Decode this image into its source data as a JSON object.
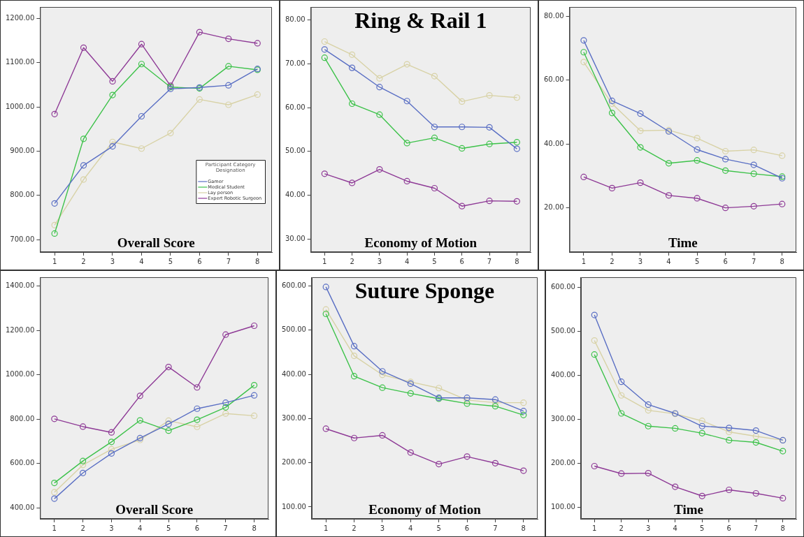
{
  "chart_data": [
    {
      "type": "line",
      "xlabel": "Overall Score",
      "legend_title": "Participant Category Designation",
      "legend": "bottom right",
      "marker": "circle",
      "line_style": "solid",
      "grid": false,
      "categories": [
        "1",
        "2",
        "3",
        "4",
        "5",
        "6",
        "7",
        "8"
      ],
      "ylim": [
        672,
        1226
      ],
      "yticks": [
        {
          "value": 700,
          "label": "700.00"
        },
        {
          "value": 800,
          "label": "800.00"
        },
        {
          "value": 900,
          "label": "900.00"
        },
        {
          "value": 1000,
          "label": "1000.00"
        },
        {
          "value": 1100,
          "label": "1100.00"
        },
        {
          "value": 1200,
          "label": "1200.00"
        }
      ],
      "series": [
        {
          "name": "Gamer",
          "color": "#5a6fc4",
          "values": [
            782,
            868,
            911,
            979,
            1041,
            1044,
            1049,
            1086
          ]
        },
        {
          "name": "Medical Student",
          "color": "#3dc24a",
          "values": [
            714,
            928,
            1027,
            1097,
            1045,
            1042,
            1092,
            1084
          ]
        },
        {
          "name": "Lay person",
          "color": "#d8d2a6",
          "values": [
            733,
            836,
            921,
            906,
            941,
            1017,
            1005,
            1028
          ]
        },
        {
          "name": "Expert Robotic Surgeon",
          "color": "#8e3a96",
          "values": [
            984,
            1134,
            1058,
            1142,
            1048,
            1169,
            1154,
            1144
          ]
        }
      ]
    },
    {
      "type": "line",
      "title": "Ring & Rail 1",
      "xlabel": "Economy of Motion",
      "marker": "circle",
      "line_style": "solid",
      "grid": false,
      "categories": [
        "1",
        "2",
        "3",
        "4",
        "5",
        "6",
        "7",
        "8"
      ],
      "ylim": [
        27,
        83
      ],
      "yticks": [
        {
          "value": 30,
          "label": "30.00"
        },
        {
          "value": 40,
          "label": "40.00"
        },
        {
          "value": 50,
          "label": "50.00"
        },
        {
          "value": 60,
          "label": "60.00"
        },
        {
          "value": 70,
          "label": "70.00"
        },
        {
          "value": 80,
          "label": "80.00"
        }
      ],
      "series": [
        {
          "color": "#5a6fc4",
          "values": [
            73.3,
            69.1,
            64.7,
            61.5,
            55.6,
            55.6,
            55.5,
            50.6
          ]
        },
        {
          "color": "#3dc24a",
          "values": [
            71.4,
            60.9,
            58.4,
            51.9,
            53.1,
            50.7,
            51.7,
            52.1
          ]
        },
        {
          "color": "#d8d2a6",
          "values": [
            75.1,
            72.1,
            66.7,
            69.9,
            67.2,
            61.4,
            62.8,
            62.3
          ]
        },
        {
          "color": "#8e3a96",
          "values": [
            44.9,
            42.8,
            45.9,
            43.2,
            41.6,
            37.5,
            38.7,
            38.6
          ]
        }
      ]
    },
    {
      "type": "line",
      "xlabel": "Time",
      "marker": "circle",
      "line_style": "solid",
      "grid": false,
      "categories": [
        "1",
        "2",
        "3",
        "4",
        "5",
        "6",
        "7",
        "8"
      ],
      "ylim": [
        6,
        83
      ],
      "yticks": [
        {
          "value": 20,
          "label": "20.00"
        },
        {
          "value": 40,
          "label": "40.00"
        },
        {
          "value": 60,
          "label": "60.00"
        },
        {
          "value": 80,
          "label": "80.00"
        }
      ],
      "series": [
        {
          "color": "#5a6fc4",
          "values": [
            72.5,
            53.5,
            49.5,
            43.9,
            38.2,
            35.2,
            33.4,
            29.2
          ]
        },
        {
          "color": "#3dc24a",
          "values": [
            68.8,
            49.7,
            38.9,
            33.9,
            34.8,
            31.6,
            30.6,
            29.7
          ]
        },
        {
          "color": "#d8d2a6",
          "values": [
            65.7,
            52.6,
            44.1,
            44.3,
            41.8,
            37.7,
            38.1,
            36.3
          ]
        },
        {
          "color": "#8e3a96",
          "values": [
            29.6,
            26.1,
            27.8,
            23.8,
            22.9,
            19.9,
            20.4,
            21.1
          ]
        }
      ]
    },
    {
      "type": "line",
      "xlabel": "Overall Score",
      "marker": "circle",
      "line_style": "solid",
      "grid": false,
      "categories": [
        "1",
        "2",
        "3",
        "4",
        "5",
        "6",
        "7",
        "8"
      ],
      "ylim": [
        350,
        1440
      ],
      "yticks": [
        {
          "value": 400,
          "label": "400.00"
        },
        {
          "value": 600,
          "label": "600.00"
        },
        {
          "value": 800,
          "label": "800.00"
        },
        {
          "value": 1000,
          "label": "1000.00"
        },
        {
          "value": 1200,
          "label": "1200.00"
        },
        {
          "value": 1400,
          "label": "1400.00"
        }
      ],
      "series": [
        {
          "color": "#5a6fc4",
          "values": [
            441,
            557,
            645,
            714,
            778,
            847,
            874,
            907
          ]
        },
        {
          "color": "#3dc24a",
          "values": [
            512,
            611,
            697,
            794,
            748,
            797,
            853,
            953
          ]
        },
        {
          "color": "#d8d2a6",
          "values": [
            470,
            593,
            664,
            706,
            793,
            765,
            825,
            815
          ]
        },
        {
          "color": "#8e3a96",
          "values": [
            801,
            766,
            740,
            905,
            1035,
            943,
            1181,
            1221
          ]
        }
      ]
    },
    {
      "type": "line",
      "title": "Suture Sponge",
      "xlabel": "Economy of Motion",
      "marker": "circle",
      "line_style": "solid",
      "grid": false,
      "categories": [
        "1",
        "2",
        "3",
        "4",
        "5",
        "6",
        "7",
        "8"
      ],
      "ylim": [
        73,
        620
      ],
      "yticks": [
        {
          "value": 100,
          "label": "100.00"
        },
        {
          "value": 200,
          "label": "200.00"
        },
        {
          "value": 300,
          "label": "300.00"
        },
        {
          "value": 400,
          "label": "400.00"
        },
        {
          "value": 500,
          "label": "500.00"
        },
        {
          "value": 600,
          "label": "600.00"
        }
      ],
      "series": [
        {
          "color": "#5a6fc4",
          "values": [
            598,
            464,
            407,
            379,
            347,
            347,
            343,
            317
          ]
        },
        {
          "color": "#3dc24a",
          "values": [
            537,
            396,
            370,
            357,
            345,
            334,
            328,
            308
          ]
        },
        {
          "color": "#d8d2a6",
          "values": [
            547,
            442,
            399,
            383,
            369,
            342,
            336,
            336
          ]
        },
        {
          "color": "#8e3a96",
          "values": [
            277,
            256,
            262,
            223,
            197,
            214,
            199,
            182
          ]
        }
      ]
    },
    {
      "type": "line",
      "xlabel": "Time",
      "marker": "circle",
      "line_style": "solid",
      "grid": false,
      "categories": [
        "1",
        "2",
        "3",
        "4",
        "5",
        "6",
        "7",
        "8"
      ],
      "ylim": [
        73,
        623
      ],
      "yticks": [
        {
          "value": 100,
          "label": "100.00"
        },
        {
          "value": 200,
          "label": "200.00"
        },
        {
          "value": 300,
          "label": "300.00"
        },
        {
          "value": 400,
          "label": "400.00"
        },
        {
          "value": 500,
          "label": "500.00"
        },
        {
          "value": 600,
          "label": "600.00"
        }
      ],
      "series": [
        {
          "color": "#5a6fc4",
          "values": [
            537,
            385,
            333,
            313,
            284,
            280,
            274,
            252
          ]
        },
        {
          "color": "#3dc24a",
          "values": [
            447,
            313,
            284,
            279,
            268,
            252,
            247,
            227
          ]
        },
        {
          "color": "#d8d2a6",
          "values": [
            479,
            354,
            320,
            312,
            296,
            271,
            261,
            252
          ]
        },
        {
          "color": "#8e3a96",
          "values": [
            193,
            176,
            177,
            146,
            125,
            139,
            131,
            120
          ]
        }
      ]
    }
  ]
}
